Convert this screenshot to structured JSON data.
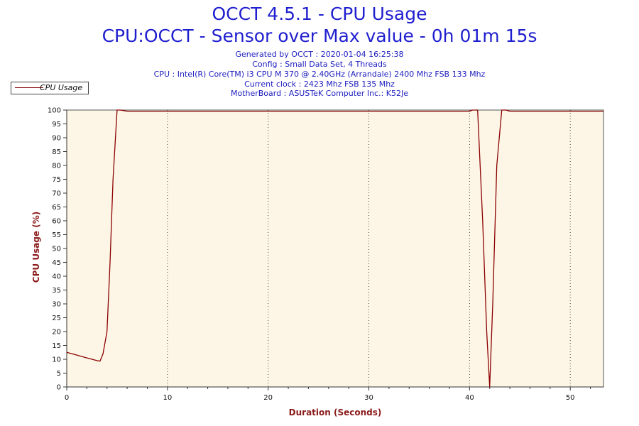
{
  "header": {
    "title": "OCCT 4.5.1 - CPU Usage",
    "subtitle": "CPU:OCCT - Sensor over Max value - 0h 01m 15s",
    "info_lines": [
      "Generated by OCCT : 2020-01-04 16:25:38",
      "Config : Small Data Set, 4 Threads",
      "CPU : Intel(R) Core(TM) i3 CPU M 370 @ 2.40GHz (Arrandale) 2400 Mhz FSB 133 Mhz",
      "Current clock : 2423 Mhz FSB 135 Mhz",
      "MotherBoard : ASUSTeK Computer Inc.: K52Je"
    ]
  },
  "legend": {
    "label": "CPU Usage"
  },
  "colors": {
    "title": "#1f1fd0",
    "series": "#8b0000",
    "plot_background": "#fdf6e6",
    "axis_title": "#8b1a1a"
  },
  "chart_data": {
    "type": "line",
    "title": "OCCT 4.5.1 - CPU Usage",
    "subtitle": "CPU:OCCT - Sensor over Max value - 0h 01m 15s",
    "xlabel": "Duration (Seconds)",
    "ylabel": "CPU Usage (%)",
    "xlim": [
      0,
      53.3
    ],
    "ylim": [
      0,
      100
    ],
    "x_ticks": [
      0,
      10,
      20,
      30,
      40,
      50
    ],
    "y_ticks": [
      0,
      5,
      10,
      15,
      20,
      25,
      30,
      35,
      40,
      45,
      50,
      55,
      60,
      65,
      70,
      75,
      80,
      85,
      90,
      95,
      100
    ],
    "grid": "vertical dotted",
    "legend_position": "top-left",
    "series": [
      {
        "name": "CPU Usage",
        "x": [
          0,
          1,
          2,
          3,
          3.3,
          3.6,
          4,
          4.3,
          4.6,
          5,
          5.3,
          6,
          7,
          10,
          20,
          30,
          40,
          40.3,
          40.8,
          41.3,
          41.7,
          42,
          42.3,
          42.7,
          43.2,
          43.6,
          44,
          45,
          50,
          53.3
        ],
        "y": [
          12.5,
          11.5,
          10.5,
          9.5,
          9.3,
          12,
          20,
          45,
          75,
          100,
          100,
          99.6,
          99.6,
          99.6,
          99.6,
          99.6,
          99.6,
          100,
          100,
          60,
          20,
          0,
          30,
          80,
          100,
          100,
          99.6,
          99.6,
          99.6,
          99.6
        ]
      }
    ]
  }
}
